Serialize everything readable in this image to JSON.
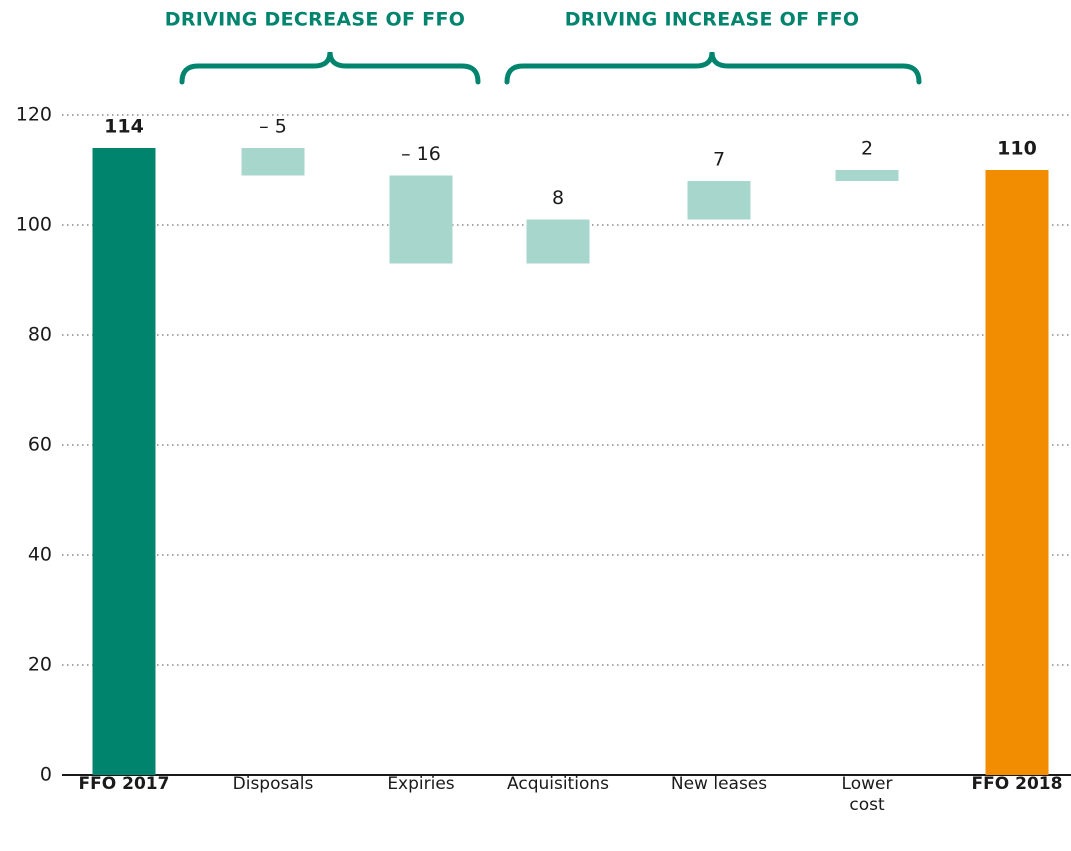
{
  "chart_data": {
    "type": "waterfall",
    "annotations": [
      "DRIVING DECREASE OF FFO",
      "DRIVING INCREASE OF FFO"
    ],
    "categories": [
      "FFO 2017",
      "Disposals",
      "Expiries",
      "Acquisitions",
      "New leases",
      "Lower cost",
      "FFO 2018"
    ],
    "values": [
      114,
      -5,
      -16,
      8,
      7,
      2,
      110
    ],
    "value_labels": [
      "114",
      "– 5",
      "– 16",
      "8",
      "7",
      "2",
      "110"
    ],
    "measure": [
      "absolute",
      "relative",
      "relative",
      "relative",
      "relative",
      "relative",
      "absolute"
    ],
    "colors": [
      "#00846e",
      "#a7d6cd",
      "#a7d6cd",
      "#a7d6cd",
      "#a7d6cd",
      "#a7d6cd",
      "#f28c00"
    ],
    "ylim": [
      0,
      120
    ],
    "yticks": [
      0,
      20,
      40,
      60,
      80,
      100,
      120
    ],
    "grid": true
  }
}
